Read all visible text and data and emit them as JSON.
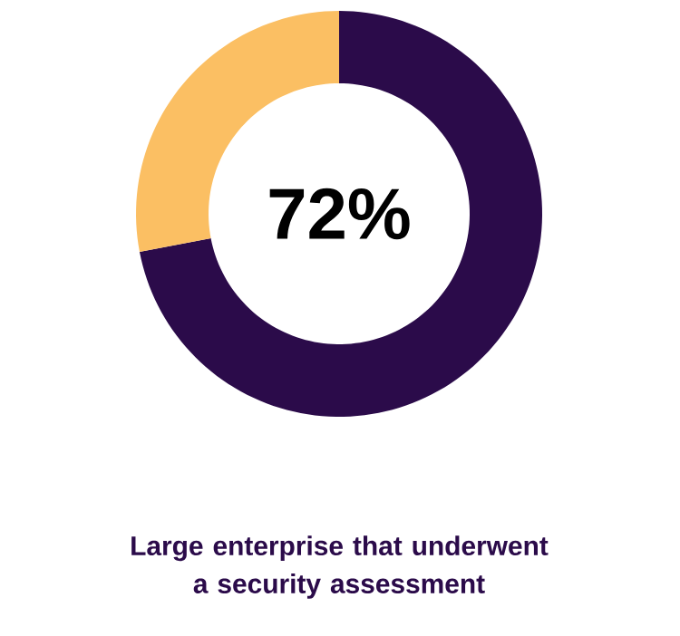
{
  "chart_data": {
    "type": "donut",
    "title": "Large enterprise that underwent a security assessment",
    "categories": [
      null,
      null
    ],
    "values": [
      72,
      28
    ],
    "colors": [
      "#2b0b4a",
      "#fbbf63"
    ],
    "value_labels": [
      "72%",
      null
    ]
  }
}
